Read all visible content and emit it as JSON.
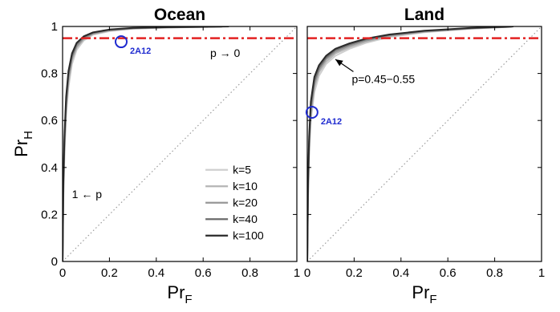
{
  "colors": {
    "reference_line": "#e32222",
    "marker": "#1f2bd0",
    "diagonal": "#9a9a9a"
  },
  "chart_data": [
    {
      "type": "line",
      "title": "Ocean",
      "xlabel": "Pr_F",
      "ylabel": "Pr_H",
      "xlim": [
        0,
        1
      ],
      "ylim": [
        0,
        1
      ],
      "x_ticks": [
        "0",
        "0.2",
        "0.4",
        "0.6",
        "0.8",
        "1"
      ],
      "y_ticks": [
        "0",
        "0.2",
        "0.4",
        "0.6",
        "0.8",
        "1"
      ],
      "grid": false,
      "reference_hline": 0.95,
      "diagonal": true,
      "legend": {
        "placement": "lower-right",
        "entries": [
          "k=5",
          "k=10",
          "k=20",
          "k=40",
          "k=100"
        ],
        "colors": [
          "#cfcfcf",
          "#b5b5b5",
          "#969696",
          "#6b6b6b",
          "#2a2a2a"
        ]
      },
      "series": [
        {
          "name": "k=5",
          "color": "#cfcfcf",
          "x": [
            0,
            0.003,
            0.008,
            0.015,
            0.025,
            0.04,
            0.06,
            0.09,
            0.13,
            0.2,
            0.3,
            0.45,
            0.6
          ],
          "y": [
            0,
            0.25,
            0.45,
            0.62,
            0.74,
            0.84,
            0.9,
            0.94,
            0.965,
            0.98,
            0.99,
            0.995,
            0.998
          ]
        },
        {
          "name": "k=10",
          "color": "#b5b5b5",
          "x": [
            0,
            0.003,
            0.008,
            0.015,
            0.025,
            0.04,
            0.06,
            0.09,
            0.13,
            0.2,
            0.3,
            0.45,
            0.62
          ],
          "y": [
            0,
            0.27,
            0.47,
            0.64,
            0.76,
            0.855,
            0.91,
            0.945,
            0.968,
            0.982,
            0.991,
            0.996,
            0.998
          ]
        },
        {
          "name": "k=20",
          "color": "#969696",
          "x": [
            0,
            0.003,
            0.008,
            0.015,
            0.025,
            0.04,
            0.06,
            0.09,
            0.13,
            0.2,
            0.3,
            0.45,
            0.65
          ],
          "y": [
            0,
            0.29,
            0.49,
            0.66,
            0.78,
            0.865,
            0.915,
            0.95,
            0.97,
            0.984,
            0.992,
            0.996,
            0.999
          ]
        },
        {
          "name": "k=40",
          "color": "#6b6b6b",
          "x": [
            0,
            0.003,
            0.008,
            0.015,
            0.025,
            0.04,
            0.06,
            0.09,
            0.13,
            0.2,
            0.3,
            0.45,
            0.68
          ],
          "y": [
            0,
            0.31,
            0.51,
            0.68,
            0.795,
            0.875,
            0.925,
            0.955,
            0.973,
            0.986,
            0.993,
            0.997,
            0.999
          ]
        },
        {
          "name": "k=100",
          "color": "#2a2a2a",
          "x": [
            0,
            0.003,
            0.008,
            0.015,
            0.025,
            0.04,
            0.06,
            0.09,
            0.13,
            0.2,
            0.3,
            0.45,
            0.71
          ],
          "y": [
            0,
            0.33,
            0.53,
            0.7,
            0.81,
            0.885,
            0.93,
            0.958,
            0.975,
            0.987,
            0.994,
            0.997,
            1.0
          ]
        }
      ],
      "marker": {
        "label": "2A12",
        "x": 0.25,
        "y": 0.935
      },
      "annotations": [
        {
          "text": "p → 0",
          "x": 0.63,
          "y": 0.87
        },
        {
          "text": "1 ← p",
          "x": 0.04,
          "y": 0.27
        }
      ]
    },
    {
      "type": "line",
      "title": "Land",
      "xlabel": "Pr_F",
      "ylabel": "",
      "xlim": [
        0,
        1
      ],
      "ylim": [
        0,
        1
      ],
      "x_ticks": [
        "0",
        "0.2",
        "0.4",
        "0.6",
        "0.8",
        "1"
      ],
      "grid": false,
      "reference_hline": 0.95,
      "diagonal": true,
      "series": [
        {
          "name": "k=5",
          "color": "#cfcfcf",
          "x": [
            0,
            0.003,
            0.008,
            0.015,
            0.03,
            0.05,
            0.08,
            0.12,
            0.18,
            0.25,
            0.35,
            0.5,
            0.7,
            0.85
          ],
          "y": [
            0,
            0.25,
            0.45,
            0.6,
            0.72,
            0.79,
            0.84,
            0.875,
            0.905,
            0.93,
            0.955,
            0.975,
            0.99,
            0.998
          ]
        },
        {
          "name": "k=10",
          "color": "#b5b5b5",
          "x": [
            0,
            0.003,
            0.008,
            0.015,
            0.03,
            0.05,
            0.08,
            0.12,
            0.18,
            0.25,
            0.35,
            0.5,
            0.7,
            0.86
          ],
          "y": [
            0,
            0.27,
            0.47,
            0.62,
            0.74,
            0.805,
            0.85,
            0.885,
            0.912,
            0.935,
            0.958,
            0.977,
            0.991,
            0.998
          ]
        },
        {
          "name": "k=20",
          "color": "#969696",
          "x": [
            0,
            0.003,
            0.008,
            0.015,
            0.03,
            0.05,
            0.08,
            0.12,
            0.18,
            0.25,
            0.35,
            0.5,
            0.7,
            0.87
          ],
          "y": [
            0,
            0.29,
            0.49,
            0.64,
            0.755,
            0.815,
            0.86,
            0.892,
            0.918,
            0.94,
            0.961,
            0.979,
            0.992,
            0.999
          ]
        },
        {
          "name": "k=40",
          "color": "#6b6b6b",
          "x": [
            0,
            0.003,
            0.008,
            0.015,
            0.03,
            0.05,
            0.08,
            0.12,
            0.18,
            0.25,
            0.35,
            0.5,
            0.7,
            0.875
          ],
          "y": [
            0,
            0.31,
            0.51,
            0.66,
            0.77,
            0.825,
            0.868,
            0.9,
            0.924,
            0.945,
            0.964,
            0.981,
            0.993,
            0.999
          ]
        },
        {
          "name": "k=100",
          "color": "#2a2a2a",
          "x": [
            0,
            0.003,
            0.008,
            0.015,
            0.03,
            0.05,
            0.08,
            0.12,
            0.18,
            0.25,
            0.35,
            0.5,
            0.7,
            0.88
          ],
          "y": [
            0,
            0.33,
            0.53,
            0.68,
            0.785,
            0.835,
            0.875,
            0.905,
            0.928,
            0.948,
            0.966,
            0.982,
            0.994,
            1.0
          ]
        }
      ],
      "marker": {
        "label": "2A12",
        "x": 0.02,
        "y": 0.635
      },
      "annotations": [
        {
          "text": "p=0.45−0.55",
          "x": 0.19,
          "y": 0.76,
          "arrow_to": [
            0.12,
            0.86
          ]
        }
      ]
    }
  ]
}
